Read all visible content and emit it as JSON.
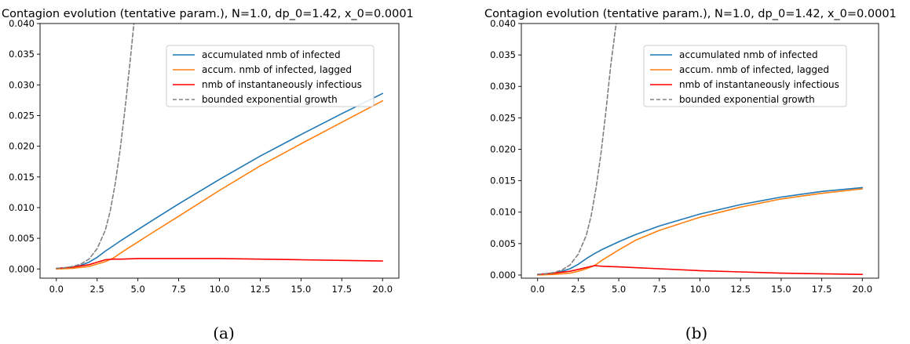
{
  "chart_data": [
    {
      "type": "line",
      "title": "Contagion evolution (tentative param.), N=1.0, dp_0=1.42, x_0=0.0001",
      "caption": "(a)",
      "xlabel": "",
      "ylabel": "",
      "xlim": [
        -1.0,
        21.0
      ],
      "ylim": [
        -0.0015,
        0.04
      ],
      "xticks": [
        0.0,
        2.5,
        5.0,
        7.5,
        10.0,
        12.5,
        15.0,
        17.5,
        20.0
      ],
      "xtick_labels": [
        "0.0",
        "2.5",
        "5.0",
        "7.5",
        "10.0",
        "12.5",
        "15.0",
        "17.5",
        "20.0"
      ],
      "yticks": [
        0.0,
        0.005,
        0.01,
        0.015,
        0.02,
        0.025,
        0.03,
        0.035,
        0.04
      ],
      "ytick_labels": [
        "0.000",
        "0.005",
        "0.010",
        "0.015",
        "0.020",
        "0.025",
        "0.030",
        "0.035",
        "0.040"
      ],
      "legend_position": "upper-right",
      "series": [
        {
          "name": "accumulated nmb of infected",
          "color": "#1f77b4",
          "style": "solid",
          "x": [
            0,
            1,
            1.5,
            2,
            2.5,
            3,
            3.5,
            4,
            5,
            6,
            7.5,
            10,
            12.5,
            15,
            17.5,
            20
          ],
          "y": [
            0.0001,
            0.0003,
            0.0006,
            0.0011,
            0.0019,
            0.0029,
            0.0038,
            0.0047,
            0.0064,
            0.0081,
            0.0106,
            0.0146,
            0.0184,
            0.0219,
            0.0253,
            0.0286
          ]
        },
        {
          "name": "accum. nmb of infected, lagged",
          "color": "#ff7f0e",
          "style": "solid",
          "x": [
            0,
            1,
            2,
            2.5,
            3,
            3.5,
            4,
            5,
            6,
            7.5,
            10,
            12.5,
            15,
            17.5,
            20
          ],
          "y": [
            0.0,
            0.0001,
            0.0004,
            0.0008,
            0.0012,
            0.0018,
            0.0027,
            0.0044,
            0.0061,
            0.0086,
            0.0128,
            0.0168,
            0.0204,
            0.0239,
            0.0274
          ]
        },
        {
          "name": "nmb of instantaneously infectious",
          "color": "#ff0000",
          "style": "solid",
          "x": [
            0,
            1,
            2,
            2.5,
            3,
            3.5,
            4,
            5,
            7.5,
            10,
            12.5,
            15,
            17.5,
            20
          ],
          "y": [
            0.0001,
            0.0003,
            0.0007,
            0.0011,
            0.0015,
            0.0016,
            0.0016,
            0.0017,
            0.0017,
            0.0017,
            0.0016,
            0.0015,
            0.0014,
            0.0013
          ]
        },
        {
          "name": "bounded exponential growth",
          "color": "#808080",
          "style": "dashed",
          "x": [
            0,
            0.5,
            1,
            1.5,
            2,
            2.5,
            3,
            3.3,
            3.6,
            3.9,
            4.2,
            4.5,
            4.8
          ],
          "y": [
            0.0001,
            0.0002,
            0.0004,
            0.0008,
            0.0016,
            0.0033,
            0.0063,
            0.0094,
            0.0138,
            0.0192,
            0.0258,
            0.0333,
            0.0412
          ]
        }
      ]
    },
    {
      "type": "line",
      "title": "Contagion evolution (tentative param.), N=1.0, dp_0=1.42, x_0=0.0001",
      "caption": "(b)",
      "xlabel": "",
      "ylabel": "",
      "xlim": [
        -1.0,
        21.0
      ],
      "ylim": [
        -0.0005,
        0.04
      ],
      "xticks": [
        0.0,
        2.5,
        5.0,
        7.5,
        10.0,
        12.5,
        15.0,
        17.5,
        20.0
      ],
      "xtick_labels": [
        "0.0",
        "2.5",
        "5.0",
        "7.5",
        "10.0",
        "12.5",
        "15.0",
        "17.5",
        "20.0"
      ],
      "yticks": [
        0.0,
        0.005,
        0.01,
        0.015,
        0.02,
        0.025,
        0.03,
        0.035,
        0.04
      ],
      "ytick_labels": [
        "0.000",
        "0.005",
        "0.010",
        "0.015",
        "0.020",
        "0.025",
        "0.030",
        "0.035",
        "0.040"
      ],
      "legend_position": "upper-right",
      "series": [
        {
          "name": "accumulated nmb of infected",
          "color": "#1f77b4",
          "style": "solid",
          "x": [
            0,
            1,
            1.5,
            2,
            2.5,
            3,
            3.5,
            4,
            5,
            6,
            7.5,
            10,
            12.5,
            15,
            17.5,
            20
          ],
          "y": [
            0.0001,
            0.0003,
            0.0006,
            0.001,
            0.0017,
            0.0026,
            0.0034,
            0.0041,
            0.0053,
            0.0064,
            0.0078,
            0.0097,
            0.0112,
            0.0124,
            0.0133,
            0.0139
          ]
        },
        {
          "name": "accum. nmb of infected, lagged",
          "color": "#ff7f0e",
          "style": "solid",
          "x": [
            0,
            1,
            2,
            2.5,
            3,
            3.5,
            4,
            5,
            6,
            7.5,
            10,
            12.5,
            15,
            17.5,
            20
          ],
          "y": [
            0.0,
            0.0001,
            0.0003,
            0.0006,
            0.001,
            0.0015,
            0.0024,
            0.004,
            0.0055,
            0.0071,
            0.0092,
            0.0108,
            0.0121,
            0.013,
            0.0137
          ]
        },
        {
          "name": "nmb of instantaneously infectious",
          "color": "#ff0000",
          "style": "solid",
          "x": [
            0,
            1,
            2,
            2.5,
            3,
            3.5,
            4,
            5,
            7.5,
            10,
            12.5,
            15,
            17.5,
            20
          ],
          "y": [
            0.0001,
            0.0003,
            0.0006,
            0.0009,
            0.0012,
            0.0015,
            0.0014,
            0.0013,
            0.001,
            0.0007,
            0.0005,
            0.0003,
            0.0002,
            0.0001
          ]
        },
        {
          "name": "bounded exponential growth",
          "color": "#808080",
          "style": "dashed",
          "x": [
            0,
            0.5,
            1,
            1.5,
            2,
            2.5,
            3,
            3.3,
            3.6,
            3.9,
            4.2,
            4.5,
            4.9
          ],
          "y": [
            0.0001,
            0.0002,
            0.0004,
            0.0008,
            0.0016,
            0.0033,
            0.0063,
            0.0094,
            0.0138,
            0.0192,
            0.0258,
            0.0333,
            0.0412
          ]
        }
      ]
    }
  ]
}
